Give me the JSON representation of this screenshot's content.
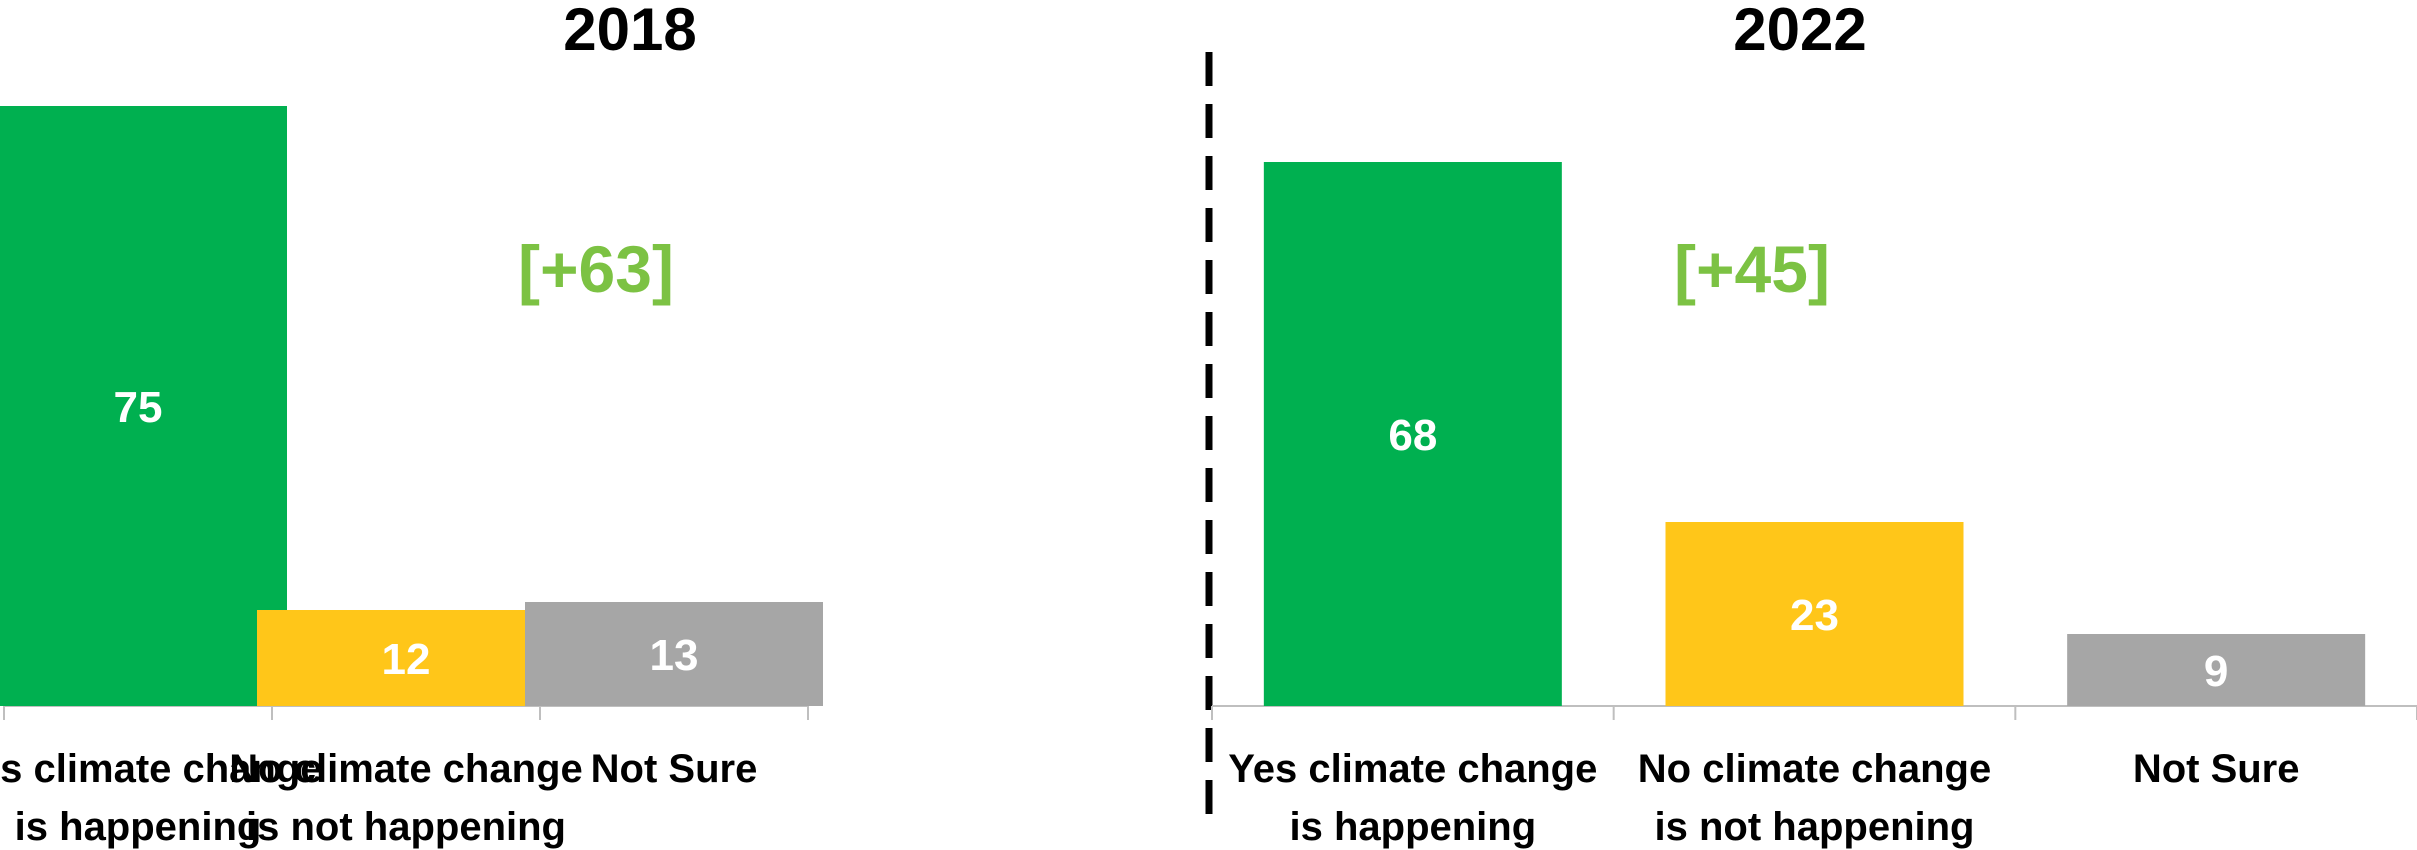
{
  "chart_data": [
    {
      "type": "bar",
      "title": "2018",
      "categories": [
        "Yes climate change is happening",
        "No climate change is not happening",
        "Not Sure"
      ],
      "category_lines": [
        [
          "Yes climate change",
          "is happening"
        ],
        [
          "No climate change",
          "is not happening"
        ],
        [
          "Not Sure"
        ]
      ],
      "values": [
        75,
        12,
        13
      ],
      "colors": [
        "#00B050",
        "#FFC619",
        "#A6A6A6"
      ],
      "annotation": "[+63]",
      "ylim": [
        0,
        80
      ]
    },
    {
      "type": "bar",
      "title": "2022",
      "categories": [
        "Yes climate change is happening",
        "No climate change is not happening",
        "Not Sure"
      ],
      "category_lines": [
        [
          "Yes climate change",
          "is happening"
        ],
        [
          "No climate change",
          "is not happening"
        ],
        [
          "Not Sure"
        ]
      ],
      "values": [
        68,
        23,
        9
      ],
      "colors": [
        "#00B050",
        "#FFC619",
        "#A6A6A6"
      ],
      "annotation": "[+45]",
      "ylim": [
        0,
        80
      ]
    }
  ],
  "colors": {
    "annotation": "#7CC243",
    "bar_label": "#FFFFFF",
    "axis": "#BFBFBF",
    "divider": "#000000",
    "text": "#000000"
  }
}
